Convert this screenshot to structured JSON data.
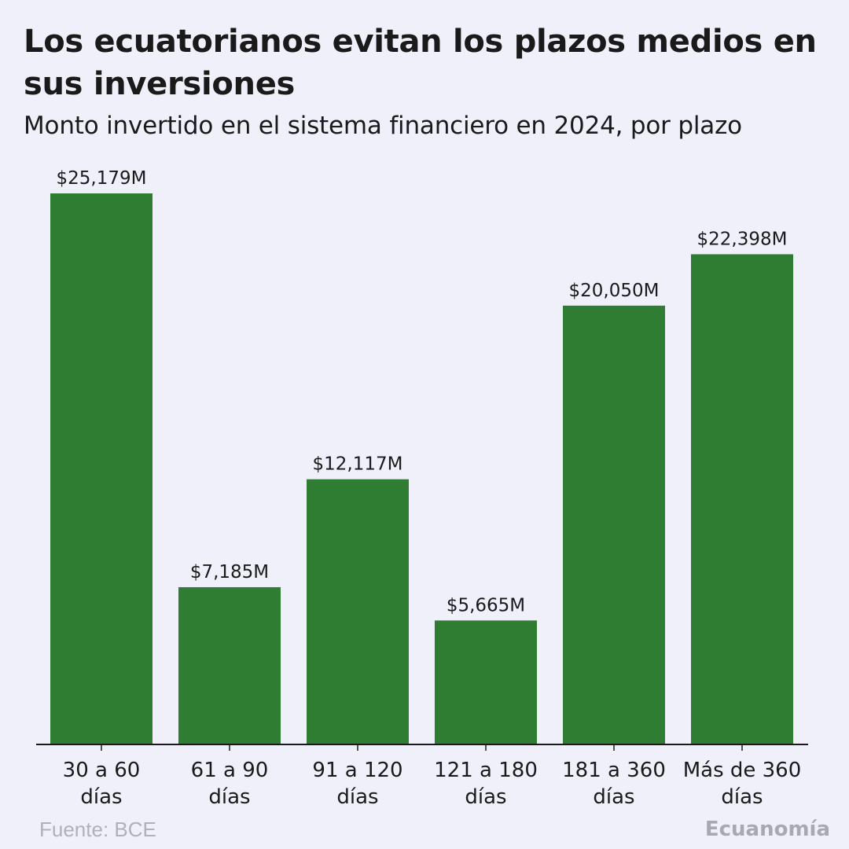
{
  "header": {
    "title": "Los ecuatorianos evitan los plazos medios en sus inversiones",
    "subtitle": "Monto invertido en el sistema financiero en 2024, por plazo"
  },
  "footer": {
    "source": "Fuente: BCE",
    "brand": "Ecuanomía"
  },
  "colors": {
    "bar": "#2f7d32",
    "axis": "#1a1a1a",
    "background": "#f0f0fb"
  },
  "chart_data": {
    "type": "bar",
    "title": "Los ecuatorianos evitan los plazos medios en sus inversiones",
    "subtitle": "Monto invertido en el sistema financiero en 2024, por plazo",
    "xlabel": "",
    "ylabel": "",
    "grid": false,
    "unit": "millones de USD",
    "ylim": [
      0,
      25179
    ],
    "categories": [
      [
        "30 a 60",
        "días"
      ],
      [
        "61 a 90",
        "días"
      ],
      [
        "91 a 120",
        "días"
      ],
      [
        "121 a 180",
        "días"
      ],
      [
        "181 a 360",
        "días"
      ],
      [
        "Más de 360",
        "días"
      ]
    ],
    "values": [
      25179,
      7185,
      12117,
      5665,
      20050,
      22398
    ],
    "data_labels": [
      "$25,179M",
      "$7,185M",
      "$12,117M",
      "$5,665M",
      "$20,050M",
      "$22,398M"
    ]
  }
}
